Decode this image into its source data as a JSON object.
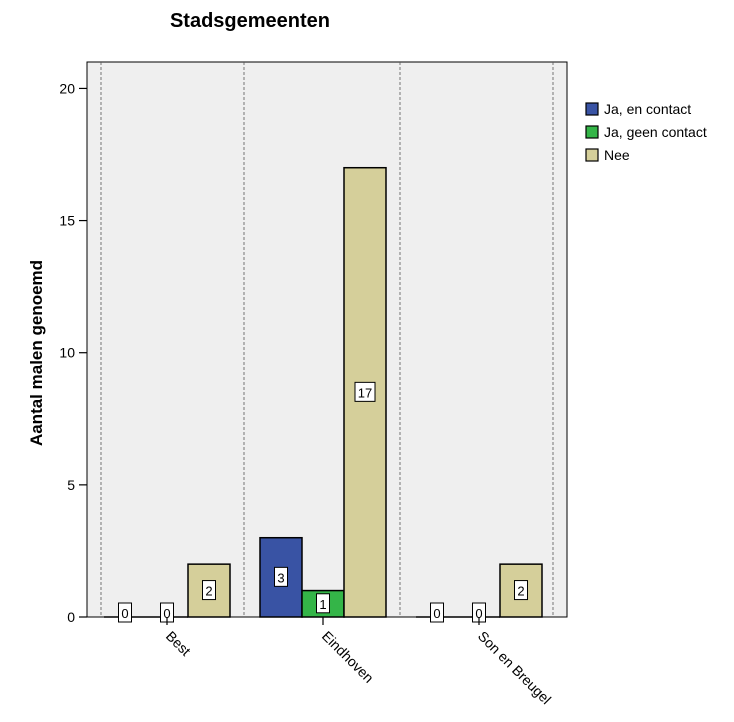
{
  "chart_data": {
    "type": "bar",
    "title": "Stadsgemeenten",
    "xlabel": "",
    "ylabel": "Aantal malen genoemd",
    "categories": [
      "Best",
      "Eindhoven",
      "Son en Breugel"
    ],
    "series": [
      {
        "name": "Ja, en contact",
        "values": [
          0,
          3,
          0
        ],
        "color": "#3953a4"
      },
      {
        "name": "Ja, geen contact",
        "values": [
          0,
          1,
          0
        ],
        "color": "#34b548"
      },
      {
        "name": "Nee",
        "values": [
          2,
          17,
          2
        ],
        "color": "#d5cf9a"
      }
    ],
    "ylim": [
      0,
      21
    ],
    "yticks": [
      0,
      5,
      10,
      15,
      20
    ],
    "grid": false,
    "legend_position": "right",
    "data_labels": true,
    "panel_background": "#efefef"
  }
}
